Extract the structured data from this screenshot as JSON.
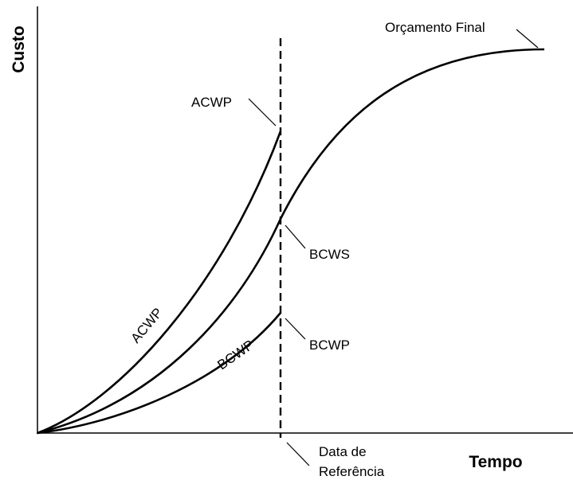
{
  "axes": {
    "y_label": "Custo",
    "x_label": "Tempo"
  },
  "reference": {
    "label_line1": "Data de",
    "label_line2": "Referência"
  },
  "curves": {
    "acwp": {
      "end_label": "ACWP",
      "curve_label": "ACWP"
    },
    "bcws": {
      "label": "BCWS",
      "end_label": "Orçamento Final"
    },
    "bcwp": {
      "end_label": "BCWP",
      "curve_label": "BCWP"
    }
  }
}
